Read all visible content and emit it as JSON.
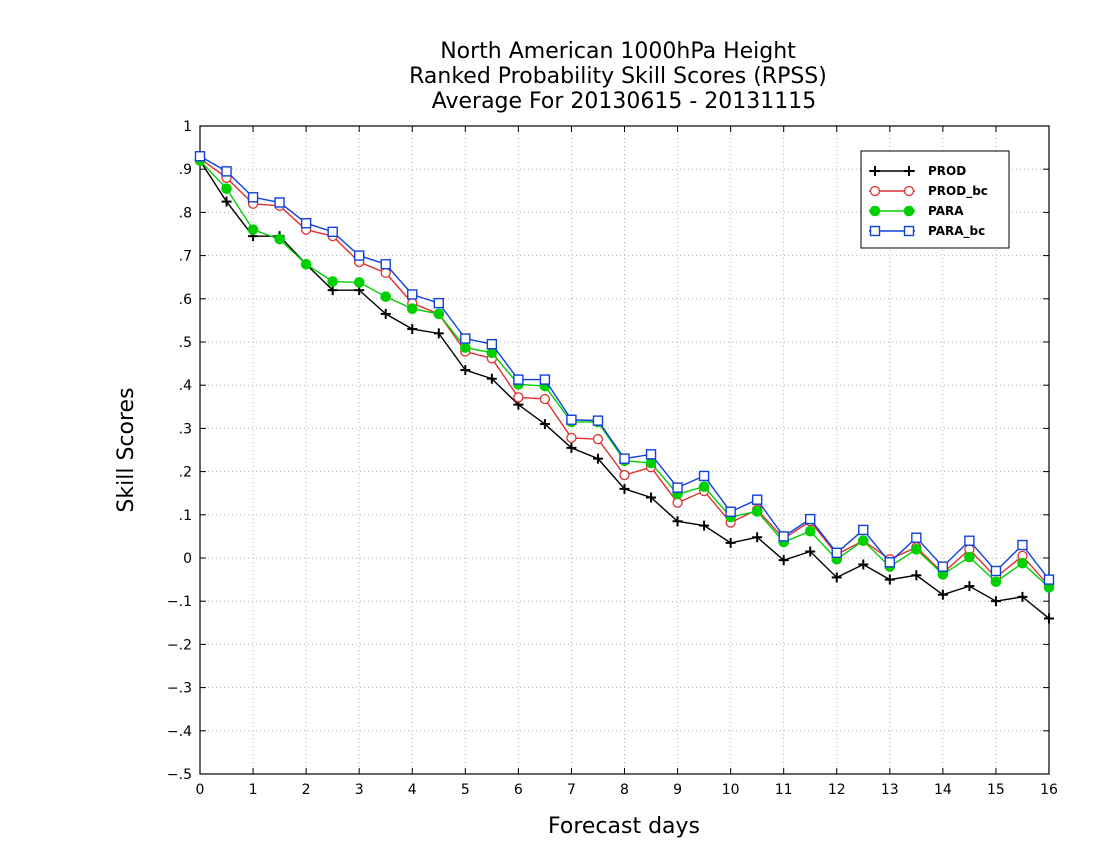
{
  "chart_data": {
    "type": "line",
    "title_lines": [
      "North American 1000hPa Height",
      "Ranked Probability Skill Scores (RPSS)",
      "Average For 20130615 - 20131115"
    ],
    "xlabel": "Forecast days",
    "ylabel": "Skill Scores",
    "xlim": [
      0,
      16
    ],
    "ylim": [
      -0.5,
      1
    ],
    "x_ticks": [
      0,
      1,
      2,
      3,
      4,
      5,
      6,
      7,
      8,
      9,
      10,
      11,
      12,
      13,
      14,
      15,
      16
    ],
    "y_ticks": [
      -0.5,
      -0.4,
      -0.3,
      -0.2,
      -0.1,
      0,
      0.1,
      0.2,
      0.3,
      0.4,
      0.5,
      0.6,
      0.7,
      0.8,
      0.9,
      1
    ],
    "grid": true,
    "legend_position": "top-right",
    "x": [
      0,
      0.5,
      1,
      1.5,
      2,
      2.5,
      3,
      3.5,
      4,
      4.5,
      5,
      5.5,
      6,
      6.5,
      7,
      7.5,
      8,
      8.5,
      9,
      9.5,
      10,
      10.5,
      11,
      11.5,
      12,
      12.5,
      13,
      13.5,
      14,
      14.5,
      15,
      15.5,
      16
    ],
    "series": [
      {
        "name": "PROD",
        "color": "#000000",
        "marker": "plus",
        "values": [
          0.92,
          0.825,
          0.745,
          0.745,
          0.68,
          0.62,
          0.62,
          0.565,
          0.53,
          0.52,
          0.435,
          0.415,
          0.355,
          0.31,
          0.255,
          0.23,
          0.16,
          0.14,
          0.085,
          0.075,
          0.035,
          0.048,
          -0.005,
          0.015,
          -0.045,
          -0.015,
          -0.05,
          -0.04,
          -0.085,
          -0.065,
          -0.1,
          -0.09,
          -0.14
        ]
      },
      {
        "name": "PROD_bc",
        "color": "#e03030",
        "marker": "open-circle",
        "values": [
          0.925,
          0.88,
          0.82,
          0.815,
          0.76,
          0.745,
          0.685,
          0.66,
          0.59,
          0.565,
          0.478,
          0.462,
          0.372,
          0.368,
          0.278,
          0.275,
          0.192,
          0.21,
          0.128,
          0.155,
          0.082,
          0.112,
          0.045,
          0.085,
          0.008,
          0.04,
          -0.003,
          0.025,
          -0.035,
          0.02,
          -0.045,
          0.005,
          -0.065
        ]
      },
      {
        "name": "PARA",
        "color": "#00d000",
        "marker": "filled-circle",
        "values": [
          0.92,
          0.855,
          0.76,
          0.738,
          0.68,
          0.64,
          0.638,
          0.605,
          0.577,
          0.565,
          0.487,
          0.475,
          0.402,
          0.398,
          0.315,
          0.315,
          0.225,
          0.22,
          0.148,
          0.165,
          0.095,
          0.108,
          0.037,
          0.062,
          -0.003,
          0.04,
          -0.02,
          0.02,
          -0.038,
          0.002,
          -0.055,
          -0.012,
          -0.068
        ]
      },
      {
        "name": "PARA_bc",
        "color": "#1040e0",
        "marker": "open-square",
        "values": [
          0.93,
          0.895,
          0.835,
          0.823,
          0.775,
          0.755,
          0.7,
          0.68,
          0.61,
          0.59,
          0.508,
          0.495,
          0.413,
          0.413,
          0.32,
          0.318,
          0.23,
          0.24,
          0.163,
          0.19,
          0.107,
          0.135,
          0.05,
          0.09,
          0.012,
          0.065,
          -0.01,
          0.047,
          -0.02,
          0.04,
          -0.03,
          0.03,
          -0.05
        ]
      }
    ]
  }
}
